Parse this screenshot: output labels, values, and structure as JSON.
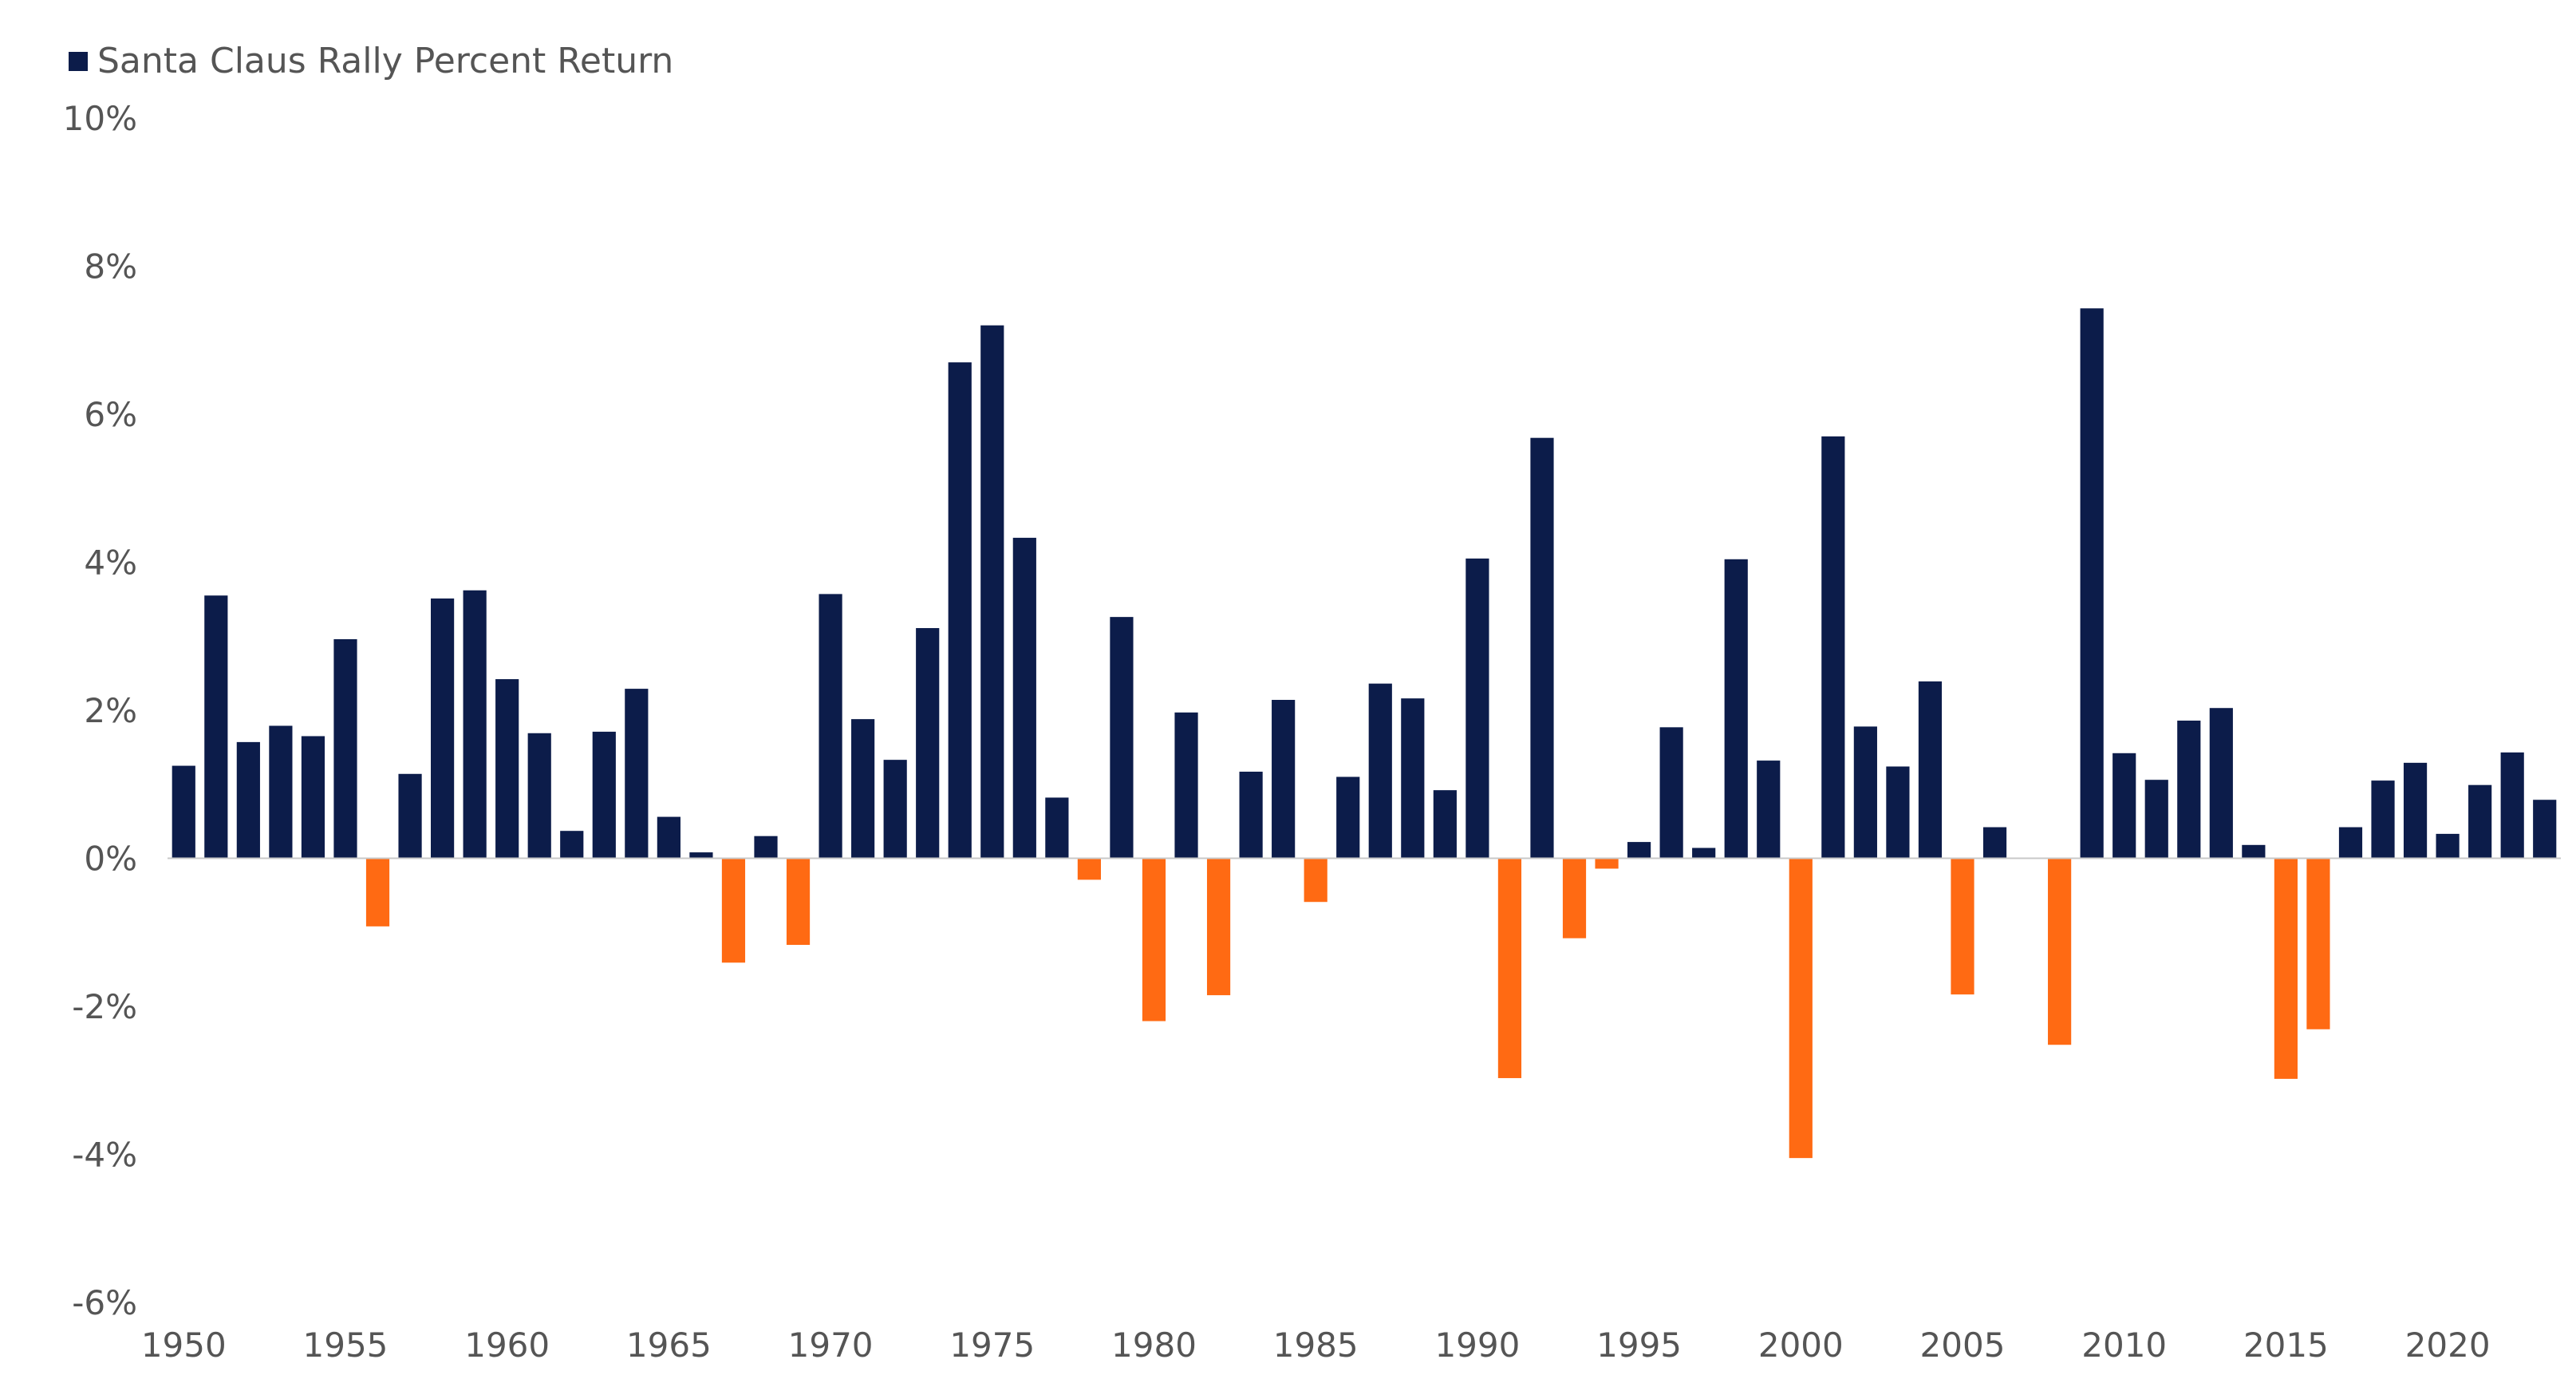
{
  "chart_data": {
    "type": "bar",
    "title": "",
    "xlabel": "",
    "ylabel": "",
    "legend": {
      "label": "Santa Claus Rally Percent Return",
      "placement": "top-left"
    },
    "ylim": [
      -6,
      10
    ],
    "y_ticks": [
      10,
      8,
      6,
      4,
      2,
      0,
      -2,
      -4,
      -6
    ],
    "y_tick_labels": [
      "10%",
      "8%",
      "6%",
      "4%",
      "2%",
      "0%",
      "-2%",
      "-4%",
      "-6%"
    ],
    "x_tick_years": [
      1950,
      1955,
      1960,
      1965,
      1970,
      1975,
      1980,
      1985,
      1990,
      1995,
      2000,
      2005,
      2010,
      2015,
      2020
    ],
    "x_tick_labels": [
      "1950",
      "1955",
      "1960",
      "1965",
      "1970",
      "1975",
      "1980",
      "1985",
      "1990",
      "1995",
      "2000",
      "2005",
      "2010",
      "2015",
      "2020"
    ],
    "grid": false,
    "positive_color": "#0c1c4a",
    "negative_color": "#ff6a13",
    "categories": [
      1950,
      1951,
      1952,
      1953,
      1954,
      1955,
      1956,
      1957,
      1958,
      1959,
      1960,
      1961,
      1962,
      1963,
      1964,
      1965,
      1966,
      1967,
      1968,
      1969,
      1970,
      1971,
      1972,
      1973,
      1974,
      1975,
      1976,
      1977,
      1978,
      1979,
      1980,
      1981,
      1982,
      1983,
      1984,
      1985,
      1986,
      1987,
      1988,
      1989,
      1990,
      1991,
      1992,
      1993,
      1994,
      1995,
      1996,
      1997,
      1998,
      1999,
      2000,
      2001,
      2002,
      2003,
      2004,
      2005,
      2006,
      2007,
      2008,
      2009,
      2010,
      2011,
      2012,
      2013,
      2014,
      2015,
      2016,
      2017,
      2018,
      2019,
      2020,
      2021,
      2022,
      2023
    ],
    "series": [
      {
        "name": "Santa Claus Rally Percent Return",
        "values": [
          1.25,
          3.55,
          1.57,
          1.79,
          1.65,
          2.96,
          -0.92,
          1.14,
          3.51,
          3.62,
          2.42,
          1.69,
          0.37,
          1.71,
          2.29,
          0.56,
          0.08,
          -1.41,
          0.3,
          -1.17,
          3.57,
          1.88,
          1.33,
          3.11,
          6.7,
          7.2,
          4.33,
          0.82,
          -0.29,
          3.26,
          -2.2,
          1.97,
          -1.85,
          1.17,
          2.14,
          -0.59,
          1.1,
          2.36,
          2.16,
          0.92,
          4.05,
          -2.97,
          5.68,
          -1.08,
          -0.14,
          0.22,
          1.77,
          0.14,
          4.04,
          1.32,
          -4.05,
          5.7,
          1.78,
          1.24,
          2.39,
          -1.84,
          0.42,
          0.0,
          -2.52,
          7.43,
          1.42,
          1.06,
          1.86,
          2.03,
          0.18,
          -2.98,
          -2.31,
          0.42,
          1.05,
          1.29,
          0.33,
          0.99,
          1.43,
          0.79
        ]
      }
    ]
  }
}
